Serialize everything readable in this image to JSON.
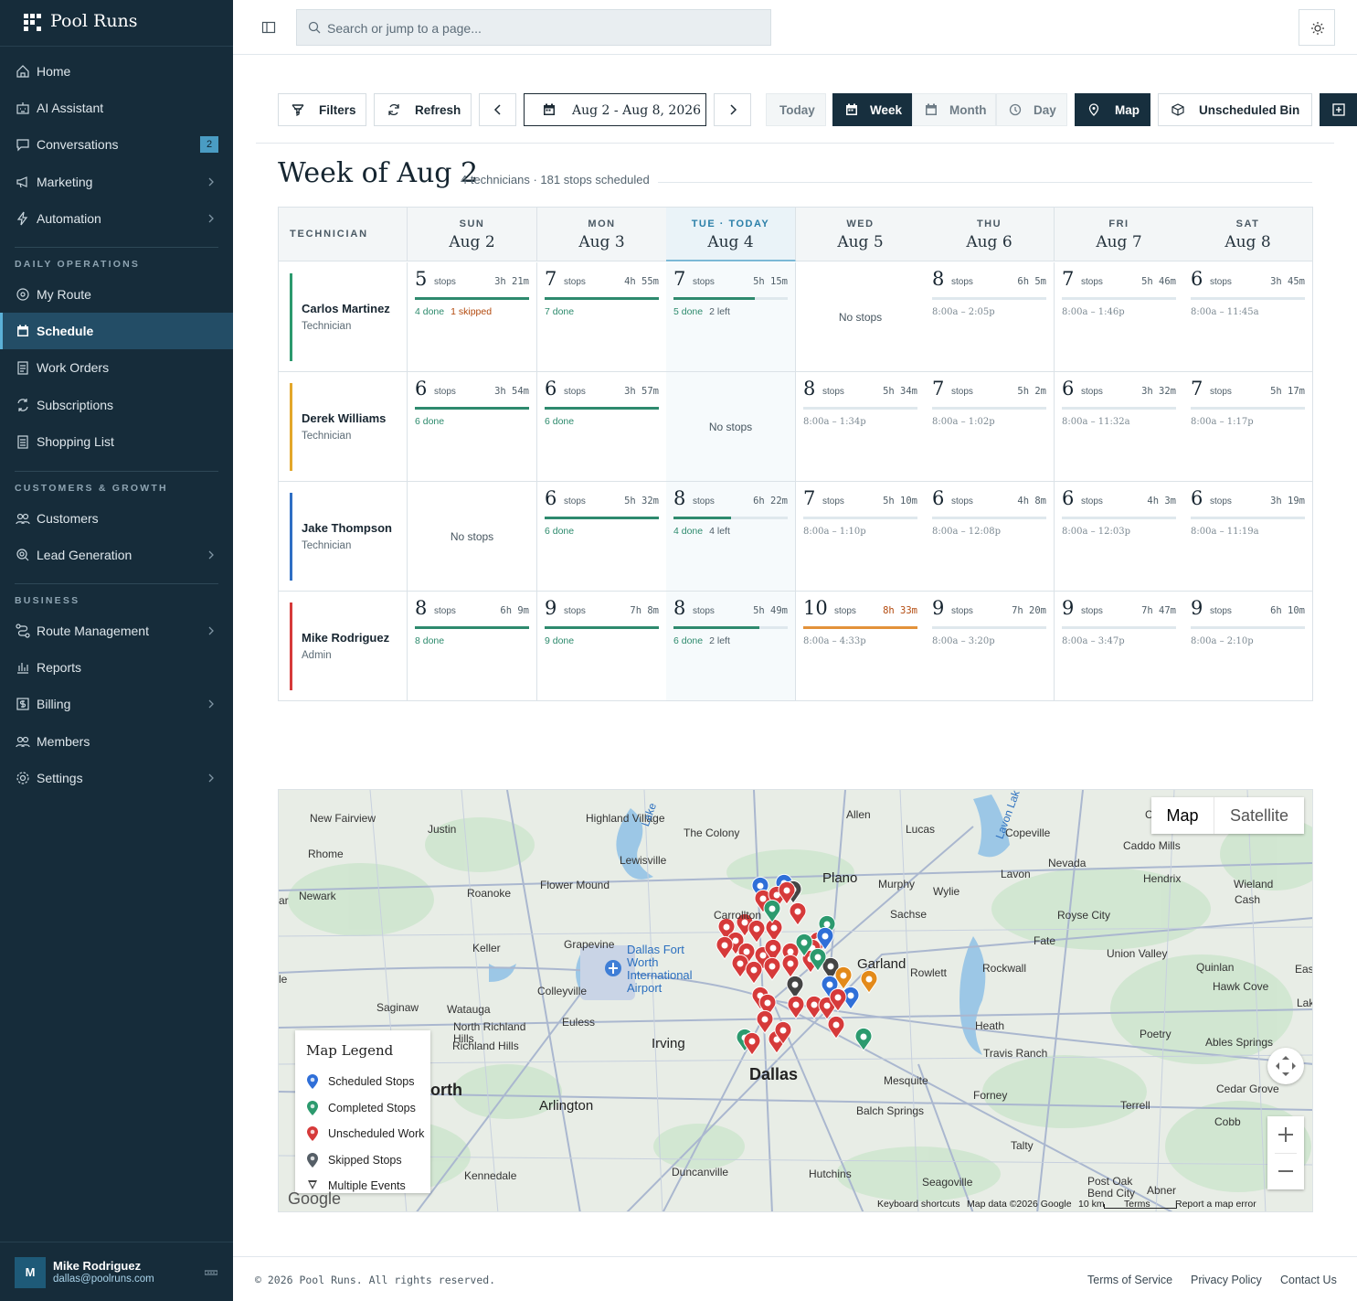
{
  "app": {
    "name": "Pool Runs"
  },
  "sidebar": {
    "items_top": [
      {
        "label": "Home",
        "icon": "home-icon"
      },
      {
        "label": "AI Assistant",
        "icon": "robot-icon"
      },
      {
        "label": "Conversations",
        "icon": "chat-icon",
        "badge": "2"
      },
      {
        "label": "Marketing",
        "icon": "megaphone-icon",
        "chevron": true
      },
      {
        "label": "Automation",
        "icon": "bolt-icon",
        "chevron": true
      }
    ],
    "section_daily": "DAILY OPERATIONS",
    "items_daily": [
      {
        "label": "My Route",
        "icon": "map-pin-icon"
      },
      {
        "label": "Schedule",
        "icon": "calendar-icon",
        "active": true
      },
      {
        "label": "Work Orders",
        "icon": "clipboard-icon"
      },
      {
        "label": "Subscriptions",
        "icon": "repeat-icon"
      },
      {
        "label": "Shopping List",
        "icon": "list-icon"
      }
    ],
    "section_customers": "CUSTOMERS & GROWTH",
    "items_customers": [
      {
        "label": "Customers",
        "icon": "users-icon"
      },
      {
        "label": "Lead Generation",
        "icon": "target-icon",
        "chevron": true
      }
    ],
    "section_business": "BUSINESS",
    "items_business": [
      {
        "label": "Route Management",
        "icon": "route-icon",
        "chevron": true
      },
      {
        "label": "Reports",
        "icon": "bar-chart-icon"
      },
      {
        "label": "Billing",
        "icon": "dollar-icon",
        "chevron": true
      },
      {
        "label": "Members",
        "icon": "team-icon"
      },
      {
        "label": "Settings",
        "icon": "gear-icon",
        "chevron": true
      }
    ],
    "user": {
      "initial": "M",
      "name": "Mike Rodriguez",
      "email": "dallas@poolruns.com"
    }
  },
  "topbar": {
    "search_placeholder": "Search or jump to a page..."
  },
  "toolbar": {
    "filters": "Filters",
    "refresh": "Refresh",
    "range": "Aug 2 - Aug 8, 2026",
    "today": "Today",
    "week": "Week",
    "month": "Month",
    "day": "Day",
    "map": "Map",
    "unscheduled": "Unscheduled Bin"
  },
  "heading": {
    "title": "Week of Aug 2",
    "subtitle": "4 technicians · 181 stops scheduled"
  },
  "grid": {
    "tech_header": "TECHNICIAN",
    "days": [
      {
        "dow": "SUN",
        "date": "Aug 2"
      },
      {
        "dow": "MON",
        "date": "Aug 3"
      },
      {
        "dow": "TUE · TODAY",
        "date": "Aug 4",
        "today": true
      },
      {
        "dow": "WED",
        "date": "Aug 5"
      },
      {
        "dow": "THU",
        "date": "Aug 6"
      },
      {
        "dow": "FRI",
        "date": "Aug 7"
      },
      {
        "dow": "SAT",
        "date": "Aug 8"
      }
    ],
    "stops_word": "stops",
    "no_stops": "No stops",
    "technicians": [
      {
        "name": "Carlos Martinez",
        "role": "Technician",
        "color": "#2c9a6e",
        "cells": [
          {
            "stops": "5",
            "dur": "3h 21m",
            "progress": 1.0,
            "done": "4 done",
            "skipped": "1 skipped"
          },
          {
            "stops": "7",
            "dur": "4h 55m",
            "progress": 1.0,
            "done": "7 done"
          },
          {
            "stops": "7",
            "dur": "5h 15m",
            "progress": 0.71,
            "done": "5 done",
            "left": "2 left"
          },
          null,
          {
            "stops": "8",
            "dur": "6h 5m",
            "progress": 0,
            "start": "8:00a",
            "end": "2:05p"
          },
          {
            "stops": "7",
            "dur": "5h 46m",
            "progress": 0,
            "start": "8:00a",
            "end": "1:46p"
          },
          {
            "stops": "6",
            "dur": "3h 45m",
            "progress": 0,
            "start": "8:00a",
            "end": "11:45a"
          }
        ]
      },
      {
        "name": "Derek Williams",
        "role": "Technician",
        "color": "#e3a72a",
        "cells": [
          {
            "stops": "6",
            "dur": "3h 54m",
            "progress": 1.0,
            "done": "6 done"
          },
          {
            "stops": "6",
            "dur": "3h 57m",
            "progress": 1.0,
            "done": "6 done"
          },
          null,
          {
            "stops": "8",
            "dur": "5h 34m",
            "progress": 0,
            "start": "8:00a",
            "end": "1:34p"
          },
          {
            "stops": "7",
            "dur": "5h 2m",
            "progress": 0,
            "start": "8:00a",
            "end": "1:02p"
          },
          {
            "stops": "6",
            "dur": "3h 32m",
            "progress": 0,
            "start": "8:00a",
            "end": "11:32a"
          },
          {
            "stops": "7",
            "dur": "5h 17m",
            "progress": 0,
            "start": "8:00a",
            "end": "1:17p"
          }
        ]
      },
      {
        "name": "Jake Thompson",
        "role": "Technician",
        "color": "#2f6fc4",
        "cells": [
          null,
          {
            "stops": "6",
            "dur": "5h 32m",
            "progress": 1.0,
            "done": "6 done"
          },
          {
            "stops": "8",
            "dur": "6h 22m",
            "progress": 0.5,
            "done": "4 done",
            "left": "4 left"
          },
          {
            "stops": "7",
            "dur": "5h 10m",
            "progress": 0,
            "start": "8:00a",
            "end": "1:10p"
          },
          {
            "stops": "6",
            "dur": "4h 8m",
            "progress": 0,
            "start": "8:00a",
            "end": "12:08p"
          },
          {
            "stops": "6",
            "dur": "4h 3m",
            "progress": 0,
            "start": "8:00a",
            "end": "12:03p"
          },
          {
            "stops": "6",
            "dur": "3h 19m",
            "progress": 0,
            "start": "8:00a",
            "end": "11:19a"
          }
        ]
      },
      {
        "name": "Mike Rodriguez",
        "role": "Admin",
        "color": "#d63a3a",
        "cells": [
          {
            "stops": "8",
            "dur": "6h 9m",
            "progress": 1.0,
            "done": "8 done"
          },
          {
            "stops": "9",
            "dur": "7h 8m",
            "progress": 1.0,
            "done": "9 done"
          },
          {
            "stops": "8",
            "dur": "5h 49m",
            "progress": 0.75,
            "done": "6 done",
            "left": "2 left"
          },
          {
            "stops": "10",
            "dur": "8h 33m",
            "progress": 1.0,
            "start": "8:00a",
            "end": "4:33p",
            "over": true
          },
          {
            "stops": "9",
            "dur": "7h 20m",
            "progress": 0,
            "start": "8:00a",
            "end": "3:20p"
          },
          {
            "stops": "9",
            "dur": "7h 47m",
            "progress": 0,
            "start": "8:00a",
            "end": "3:47p"
          },
          {
            "stops": "9",
            "dur": "6h 10m",
            "progress": 0,
            "start": "8:00a",
            "end": "2:10p"
          }
        ]
      }
    ]
  },
  "map": {
    "type_map": "Map",
    "type_satellite": "Satellite",
    "legend_title": "Map Legend",
    "legend": [
      {
        "label": "Scheduled Stops",
        "color": "#2f6fd8"
      },
      {
        "label": "Completed Stops",
        "color": "#2c9a6e"
      },
      {
        "label": "Unscheduled Work",
        "color": "#d63a3a"
      },
      {
        "label": "Skipped Stops",
        "color": "#555e66"
      },
      {
        "label": "Multiple Events",
        "color": "#444"
      }
    ],
    "places": [
      "New Fairview",
      "Justin",
      "Rhome",
      "Newark",
      "Roanoke",
      "Highland Village",
      "The Colony",
      "Lewisville",
      "Flower Mound",
      "Keller",
      "Grapevine",
      "Carrollton",
      "Dallas Fort Worth International Airport",
      "Colleyville",
      "Saginaw",
      "Watauga",
      "North Richland Hills",
      "Richland Hills",
      "Euless",
      "Irving",
      "orth",
      "Arlington",
      "Kennedale",
      "Duncanville",
      "Dallas",
      "Mesquite",
      "Balch Springs",
      "Hutchins",
      "Seagoville",
      "Plano",
      "Allen",
      "Lucas",
      "Copeville",
      "Murphy",
      "Wylie",
      "Sachse",
      "Garland",
      "Rowlett",
      "Rockwall",
      "Fate",
      "Royse City",
      "Nevada",
      "Lavon",
      "Caddo Mills",
      "Hendrix",
      "Wieland",
      "Cash",
      "Union Valley",
      "Quinlan",
      "Hawk Cove",
      "Heath",
      "Travis Ranch",
      "Poetry",
      "Ables Springs",
      "Forney",
      "Terrell",
      "Cedar Grove",
      "Cobb",
      "Talty",
      "Post Oak Bend City",
      "Abner",
      "Clint",
      "Eas",
      "Lak",
      "ar",
      "le",
      "Lavon Lak",
      "Lake",
      "Dallas"
    ],
    "footer": [
      "Keyboard shortcuts",
      "Map data ©2026 Google",
      "10 km",
      "Terms",
      "Report a map error"
    ],
    "google": "Google"
  },
  "footer": {
    "copyright": "© 2026 Pool Runs. All rights reserved.",
    "terms": "Terms of Service",
    "privacy": "Privacy Policy",
    "contact": "Contact Us"
  }
}
